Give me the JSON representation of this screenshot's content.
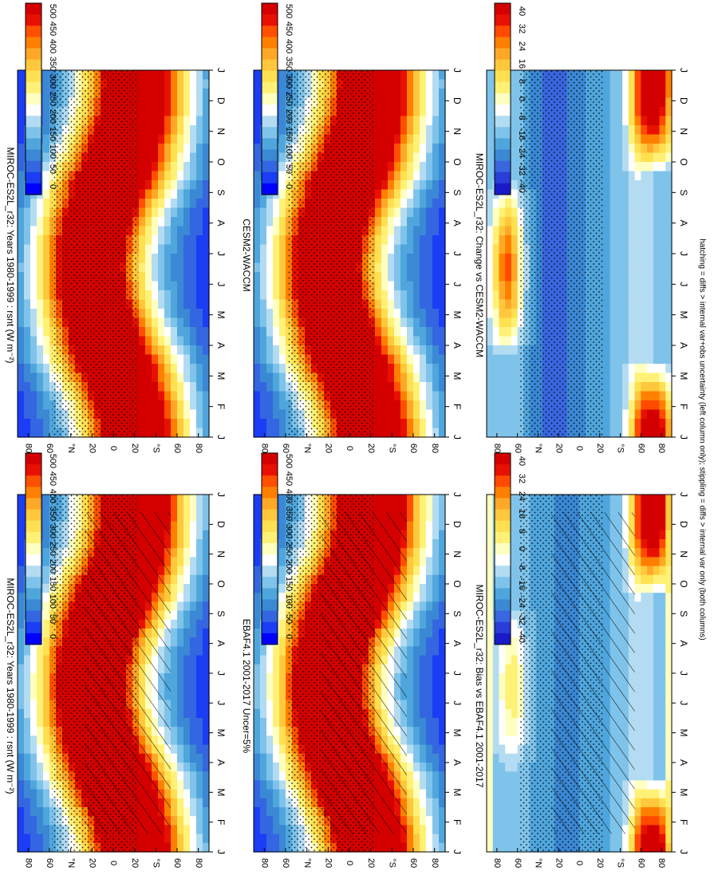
{
  "colors": {
    "abs_scale": [
      "#0000ff",
      "#1a3df5",
      "#3366e0",
      "#3b88d4",
      "#4fa6dd",
      "#7fc3ea",
      "#b3dcf2",
      "#ffffff",
      "#ffffc0",
      "#fff176",
      "#ffe050",
      "#ffc83c",
      "#ffa828",
      "#ff8000",
      "#ff5000",
      "#e81000",
      "#d40000"
    ],
    "diff_scale": [
      "#1a1ac8",
      "#2a3dd8",
      "#3a66e0",
      "#3b88d4",
      "#4fa6dd",
      "#7fc3ea",
      "#b3dcf2",
      "#ffffff",
      "#ffffc0",
      "#fff176",
      "#ffe050",
      "#ffc83c",
      "#ffa828",
      "#ff7f00",
      "#ff4a00",
      "#e81000",
      "#d40000"
    ]
  },
  "footnote": "hatching = diffs > internal var+obs uncertainty (left column only); stippling = diffs > internal var only (both columns)",
  "chart_data": [
    {
      "type": "heatmap",
      "title": "MIROC-ES2L_r32: Years 1980-1999 : rsnt (W m⁻²)",
      "x_ticks": [
        "J",
        "F",
        "M",
        "A",
        "M",
        "J",
        "J",
        "A",
        "S",
        "O",
        "N",
        "D",
        "J"
      ],
      "y_ticks": [
        "80",
        "60",
        "°N",
        "20",
        "0",
        "20",
        "°S",
        "60",
        "80"
      ],
      "colorbar_ticks": [
        "500",
        "450",
        "400",
        "350",
        "300",
        "250",
        "200",
        "150",
        "100",
        "50",
        "0"
      ],
      "zlim": [
        0,
        500
      ],
      "hatching": true,
      "stippling": true
    },
    {
      "type": "heatmap",
      "title": "EBAF4.1 2001-2017 Uncer=5%",
      "x_ticks": [
        "J",
        "F",
        "M",
        "A",
        "M",
        "J",
        "J",
        "A",
        "S",
        "O",
        "N",
        "D",
        "J"
      ],
      "y_ticks": [
        "80",
        "60",
        "°N",
        "20",
        "0",
        "20",
        "°S",
        "60",
        "80"
      ],
      "colorbar_ticks": [
        "500",
        "450",
        "400",
        "350",
        "300",
        "250",
        "200",
        "150",
        "100",
        "50",
        "0"
      ],
      "zlim": [
        0,
        500
      ],
      "hatching": true,
      "stippling": true
    },
    {
      "type": "heatmap",
      "title": "MIROC-ES2L_r32: Bias vs EBAF4.1 2001-2017",
      "x_ticks": [
        "J",
        "F",
        "M",
        "A",
        "M",
        "J",
        "J",
        "A",
        "S",
        "O",
        "N",
        "D",
        "J"
      ],
      "y_ticks": [
        "80",
        "60",
        "°N",
        "20",
        "0",
        "20",
        "°S",
        "60",
        "80"
      ],
      "colorbar_ticks": [
        "40",
        "32",
        "24",
        "16",
        "8",
        "0",
        "-8",
        "-16",
        "-24",
        "-32",
        "-40"
      ],
      "zlim": [
        -40,
        40
      ],
      "hatching": true,
      "stippling": true
    },
    {
      "type": "heatmap",
      "title": "MIROC-ES2L_r32: Years 1980-1999 : rsnt (W m⁻²)",
      "x_ticks": [
        "J",
        "F",
        "M",
        "A",
        "M",
        "J",
        "J",
        "A",
        "S",
        "O",
        "N",
        "D",
        "J"
      ],
      "y_ticks": [
        "80",
        "60",
        "°N",
        "20",
        "0",
        "20",
        "°S",
        "60",
        "80"
      ],
      "colorbar_ticks": [
        "500",
        "450",
        "400",
        "350",
        "300",
        "250",
        "200",
        "150",
        "100",
        "50",
        "0"
      ],
      "zlim": [
        0,
        500
      ],
      "hatching": false,
      "stippling": true
    },
    {
      "type": "heatmap",
      "title": "CESM2-WACCM",
      "x_ticks": [
        "J",
        "F",
        "M",
        "A",
        "M",
        "J",
        "J",
        "A",
        "S",
        "O",
        "N",
        "D",
        "J"
      ],
      "y_ticks": [
        "80",
        "60",
        "°N",
        "20",
        "0",
        "20",
        "°S",
        "60",
        "80"
      ],
      "colorbar_ticks": [
        "500",
        "450",
        "400",
        "350",
        "300",
        "250",
        "200",
        "150",
        "100",
        "50",
        "0"
      ],
      "zlim": [
        0,
        500
      ],
      "hatching": false,
      "stippling": true
    },
    {
      "type": "heatmap",
      "title": "MIROC-ES2L_r32: Change vs CESM2-WACCM",
      "x_ticks": [
        "J",
        "F",
        "M",
        "A",
        "M",
        "J",
        "J",
        "A",
        "S",
        "O",
        "N",
        "D",
        "J"
      ],
      "y_ticks": [
        "80",
        "60",
        "°N",
        "20",
        "0",
        "20",
        "°S",
        "60",
        "80"
      ],
      "colorbar_ticks": [
        "40",
        "32",
        "24",
        "16",
        "8",
        "0",
        "-8",
        "-16",
        "-24",
        "-32",
        "-40"
      ],
      "zlim": [
        -40,
        40
      ],
      "hatching": false,
      "stippling": true
    }
  ]
}
